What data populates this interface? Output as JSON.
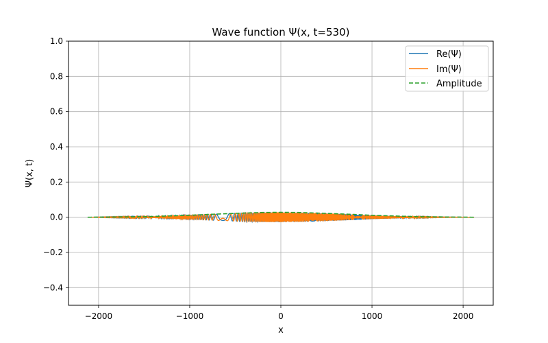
{
  "chart_data": {
    "type": "line",
    "title": "Wave function Ψ(x, t=530)",
    "xlabel": "x",
    "ylabel": "Ψ(x, t)",
    "xlim": [
      -2330,
      2330
    ],
    "ylim": [
      -0.5,
      1.0
    ],
    "xticks": [
      -2000,
      -1000,
      0,
      1000,
      2000
    ],
    "xtick_labels": [
      "−2000",
      "−1000",
      "0",
      "1000",
      "2000"
    ],
    "yticks": [
      -0.4,
      -0.2,
      0.0,
      0.2,
      0.4,
      0.6,
      0.8,
      1.0
    ],
    "ytick_labels": [
      "−0.4",
      "−0.2",
      "0.0",
      "0.2",
      "0.4",
      "0.6",
      "0.8",
      "1.0"
    ],
    "grid": true,
    "legend_position": "top-right",
    "x_range": [
      -2120,
      2120
    ],
    "envelope_x": [
      -2120,
      -1500,
      -1000,
      -800,
      -500,
      -200,
      0,
      200,
      500,
      800,
      1000,
      1500,
      2120
    ],
    "envelope_y": [
      0.0,
      0.003,
      0.011,
      0.016,
      0.022,
      0.027,
      0.028,
      0.027,
      0.022,
      0.016,
      0.011,
      0.003,
      0.0
    ],
    "series": [
      {
        "name": "Re(Ψ)",
        "color": "#1f77b4",
        "style": "solid"
      },
      {
        "name": "Im(Ψ)",
        "color": "#ff7f0e",
        "style": "solid"
      },
      {
        "name": "Amplitude",
        "color": "#2ca02c",
        "style": "dashed"
      }
    ]
  }
}
